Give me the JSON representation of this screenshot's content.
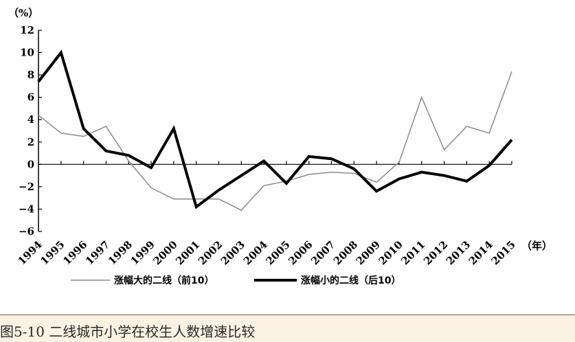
{
  "chart_data": {
    "type": "line",
    "y_unit_label": "（%）",
    "x_unit_label": "（年）",
    "categories": [
      "1994",
      "1995",
      "1996",
      "1997",
      "1998",
      "1999",
      "2000",
      "2001",
      "2002",
      "2003",
      "2004",
      "2005",
      "2006",
      "2007",
      "2008",
      "2009",
      "2010",
      "2011",
      "2012",
      "2013",
      "2014",
      "2015"
    ],
    "ylim": [
      -6,
      12
    ],
    "yticks": [
      -6,
      -4,
      -2,
      0,
      2,
      4,
      6,
      8,
      10,
      12
    ],
    "ytick_labels": [
      "−6",
      "−4",
      "−2",
      "0",
      "2",
      "4",
      "6",
      "8",
      "10",
      "12"
    ],
    "series": [
      {
        "name": "涨幅大的二线（前10）",
        "style": "thin",
        "color": "#8a8a8a",
        "values": [
          4.4,
          2.8,
          2.5,
          3.4,
          0.3,
          -2.1,
          -3.1,
          -3.1,
          -3.1,
          -4.1,
          -1.9,
          -1.5,
          -0.9,
          -0.7,
          -0.8,
          -1.6,
          0.2,
          6.0,
          1.3,
          3.4,
          2.8,
          8.3
        ]
      },
      {
        "name": "涨幅小的二线（后10）",
        "style": "thick",
        "color": "#000000",
        "values": [
          7.4,
          10.0,
          3.2,
          1.2,
          0.8,
          -0.3,
          3.2,
          -3.8,
          -2.3,
          -1.0,
          0.3,
          -1.7,
          0.7,
          0.5,
          -0.4,
          -2.4,
          -1.3,
          -0.7,
          -1.0,
          -1.5,
          -0.1,
          2.2
        ]
      }
    ],
    "legend": "bottom"
  },
  "caption": "图5-10 二线城市小学在校生人数增速比较",
  "colors": {
    "caption_bg": "#fbf2e4"
  }
}
